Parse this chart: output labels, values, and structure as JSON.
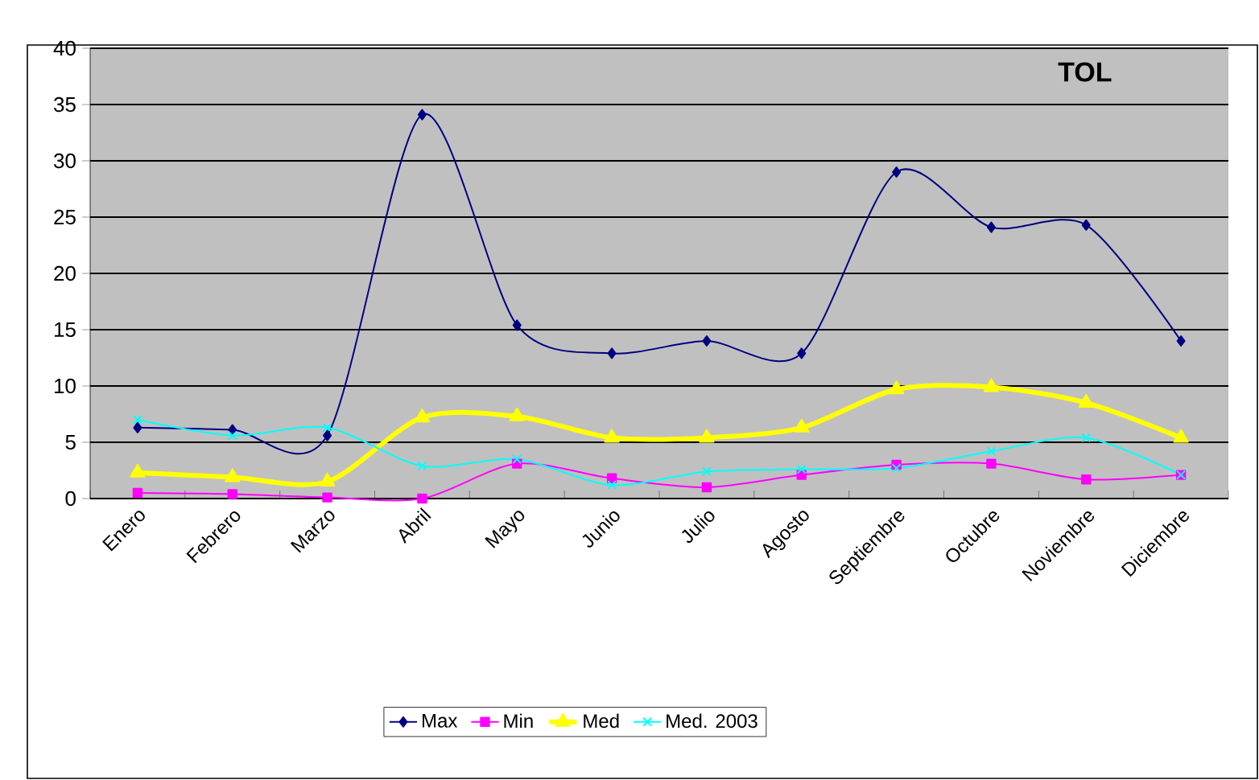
{
  "chart_data": {
    "type": "line",
    "title": "TOL",
    "categories": [
      "Enero",
      "Febrero",
      "Marzo",
      "Abril",
      "Mayo",
      "Junio",
      "Julio",
      "Agosto",
      "Septiembre",
      "Octubre",
      "Noviembre",
      "Diciembre"
    ],
    "series": [
      {
        "name": "Max",
        "color": "#000080",
        "marker": "diamond",
        "values": [
          6.3,
          6.1,
          5.6,
          34.1,
          15.4,
          12.9,
          14.0,
          12.9,
          29.0,
          24.1,
          24.3,
          14.0
        ]
      },
      {
        "name": "Min",
        "color": "#ff00ff",
        "marker": "square",
        "values": [
          0.5,
          0.4,
          0.1,
          0.0,
          3.1,
          1.8,
          1.0,
          2.1,
          3.0,
          3.1,
          1.7,
          2.1
        ]
      },
      {
        "name": "Med",
        "color": "#ffff00",
        "marker": "triangle",
        "values": [
          2.3,
          1.9,
          1.5,
          7.2,
          7.3,
          5.4,
          5.4,
          6.3,
          9.7,
          9.9,
          8.5,
          5.4
        ]
      },
      {
        "name": "Med. 2003",
        "color": "#00ffff",
        "marker": "cross",
        "values": [
          7.0,
          5.6,
          6.3,
          2.9,
          3.5,
          1.2,
          2.4,
          2.6,
          2.7,
          4.2,
          5.4,
          2.1
        ]
      }
    ],
    "ylim": [
      0,
      40
    ],
    "yticks": [
      0,
      5,
      10,
      15,
      20,
      25,
      30,
      35,
      40
    ],
    "grid": "y",
    "legend": "bottom",
    "line_style": "solid"
  }
}
